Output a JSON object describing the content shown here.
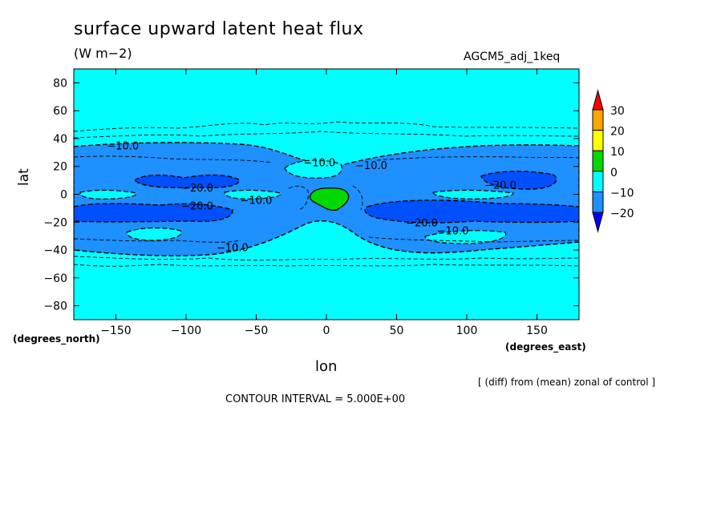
{
  "chart_data": {
    "type": "heatmap",
    "title": "surface upward latent heat flux",
    "units": "(W m−2)",
    "experiment": "AGCM5_adj_1keq",
    "xlabel": "lon",
    "ylabel": "lat",
    "x_unit_label": "(degrees_east)",
    "y_unit_label": "(degrees_north)",
    "xlim": [
      -180,
      180
    ],
    "ylim": [
      -90,
      90
    ],
    "x_ticks": [
      -150,
      -100,
      -50,
      0,
      50,
      100,
      150
    ],
    "x_tick_labels": [
      "−150",
      "−100",
      "−50",
      "0",
      "50",
      "100",
      "150"
    ],
    "y_ticks": [
      80,
      60,
      40,
      20,
      0,
      -20,
      -40,
      -60,
      -80
    ],
    "y_tick_labels": [
      "80",
      "60",
      "40",
      "20",
      "0",
      "−20",
      "−40",
      "−60",
      "−80"
    ],
    "colorbar": {
      "levels": [
        30,
        20,
        10,
        0,
        -10,
        -20
      ],
      "level_labels": [
        "30",
        "20",
        "10",
        "0",
        "−10",
        "−20"
      ],
      "colors": [
        "#ff0000",
        "#ffa500",
        "#ffff00",
        "#00d800",
        "#00ffff",
        "#1e90ff",
        "#0000ff"
      ]
    },
    "contour_labels": [
      {
        "text": "−10.0",
        "lon": -145,
        "lat": 35
      },
      {
        "text": "−10.0",
        "lon": -5,
        "lat": 23
      },
      {
        "text": "−10.0",
        "lon": 32,
        "lat": 21
      },
      {
        "text": "−20.0",
        "lon": -92,
        "lat": 5
      },
      {
        "text": "−20.0",
        "lon": -92,
        "lat": -8
      },
      {
        "text": "−10.0",
        "lon": -50,
        "lat": -4
      },
      {
        "text": "−20.0",
        "lon": 124,
        "lat": 7
      },
      {
        "text": "−20.0",
        "lon": 68,
        "lat": -20
      },
      {
        "text": "−10.0",
        "lon": 90,
        "lat": -26
      },
      {
        "text": "−10.0",
        "lon": -67,
        "lat": -38
      }
    ],
    "note": "[ (diff) from (mean) zonal of control ]",
    "contour_interval": "CONTOUR INTERVAL = 5.000E+00",
    "grid": false
  }
}
